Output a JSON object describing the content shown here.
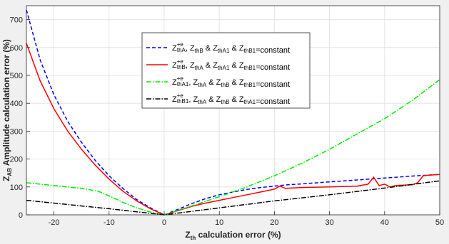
{
  "chart_data": {
    "type": "line",
    "title": "",
    "xlabel": {
      "main": "Z",
      "sub": "th",
      "rest": " calculation error (%)"
    },
    "ylabel": {
      "main": "Z",
      "sub": "AB",
      "rest": " Amplitude calculation error (%)"
    },
    "xlim": [
      -25,
      50
    ],
    "ylim": [
      0,
      750
    ],
    "xticks": [
      -20,
      -10,
      0,
      10,
      20,
      30,
      40,
      50
    ],
    "yticks": [
      0,
      100,
      200,
      300,
      400,
      500,
      600,
      700
    ],
    "grid": true,
    "legend_position": "top-center",
    "series": [
      {
        "legend": {
          "Z": "Z",
          "sup": "+e",
          "sub": "thA",
          "tail": [
            [
              "Z",
              "thB"
            ],
            [
              "Z",
              "thA1"
            ],
            [
              "Z",
              "thB1"
            ]
          ],
          "suffix": "=constant"
        },
        "color": "#0000ff",
        "style": "dashed",
        "x": [
          -25,
          -22.5,
          -20,
          -17.5,
          -15,
          -12.5,
          -10,
          -7.5,
          -5,
          -2.5,
          0,
          2.5,
          5,
          7.5,
          10,
          12.5,
          15,
          17.5,
          20,
          22.5,
          25,
          30,
          35,
          40,
          45,
          50
        ],
        "y": [
          735,
          555,
          430,
          335,
          260,
          195,
          140,
          95,
          55,
          25,
          0,
          20,
          40,
          58,
          72,
          82,
          91,
          98,
          103,
          108,
          111,
          118,
          125,
          132,
          139,
          145
        ]
      },
      {
        "legend": {
          "Z": "Z",
          "sup": "+e",
          "sub": "thB",
          "tail": [
            [
              "Z",
              "thA"
            ],
            [
              "Z",
              "thA1"
            ],
            [
              "Z",
              "thB1"
            ]
          ],
          "suffix": "=constant"
        },
        "color": "#ff0000",
        "style": "solid",
        "x": [
          -25,
          -22.5,
          -20,
          -17.5,
          -15,
          -12.5,
          -10,
          -7.5,
          -5,
          -2.5,
          0,
          2.5,
          5,
          7.5,
          10,
          12.5,
          15,
          17.5,
          20,
          21,
          22,
          25,
          30,
          35,
          37,
          38,
          39,
          40,
          41,
          42,
          45,
          46,
          47,
          48,
          50
        ],
        "y": [
          615,
          480,
          380,
          300,
          235,
          178,
          128,
          85,
          50,
          22,
          0,
          15,
          30,
          42,
          52,
          62,
          72,
          82,
          92,
          103,
          95,
          98,
          100,
          103,
          110,
          135,
          105,
          110,
          100,
          105,
          108,
          115,
          140,
          142,
          145
        ]
      },
      {
        "legend": {
          "Z": "Z",
          "sup": "+e",
          "sub": "thA1",
          "tail": [
            [
              "Z",
              "thA"
            ],
            [
              "Z",
              "thB"
            ],
            [
              "Z",
              "thB1"
            ]
          ],
          "suffix": "=constant"
        },
        "color": "#00ee00",
        "style": "dashdot",
        "x": [
          -25,
          -20,
          -15,
          -12,
          -10,
          -7.5,
          -5,
          -2.5,
          0,
          5,
          10,
          15,
          20,
          25,
          30,
          35,
          40,
          45,
          50
        ],
        "y": [
          115,
          105,
          95,
          85,
          68,
          45,
          25,
          10,
          0,
          32,
          65,
          100,
          140,
          185,
          235,
          290,
          345,
          410,
          485
        ]
      },
      {
        "legend": {
          "Z": "Z",
          "sup": "+e",
          "sub": "thB1",
          "tail": [
            [
              "Z",
              "thA"
            ],
            [
              "Z",
              "thB"
            ],
            [
              "Z",
              "thA1"
            ]
          ],
          "suffix": "=constant"
        },
        "color": "#000000",
        "style": "dashdot",
        "x": [
          -25,
          -20,
          -15,
          -10,
          -5,
          0,
          10,
          20,
          30,
          40,
          50
        ],
        "y": [
          52,
          42,
          32,
          22,
          11,
          0,
          25,
          50,
          72,
          96,
          122
        ]
      }
    ]
  }
}
